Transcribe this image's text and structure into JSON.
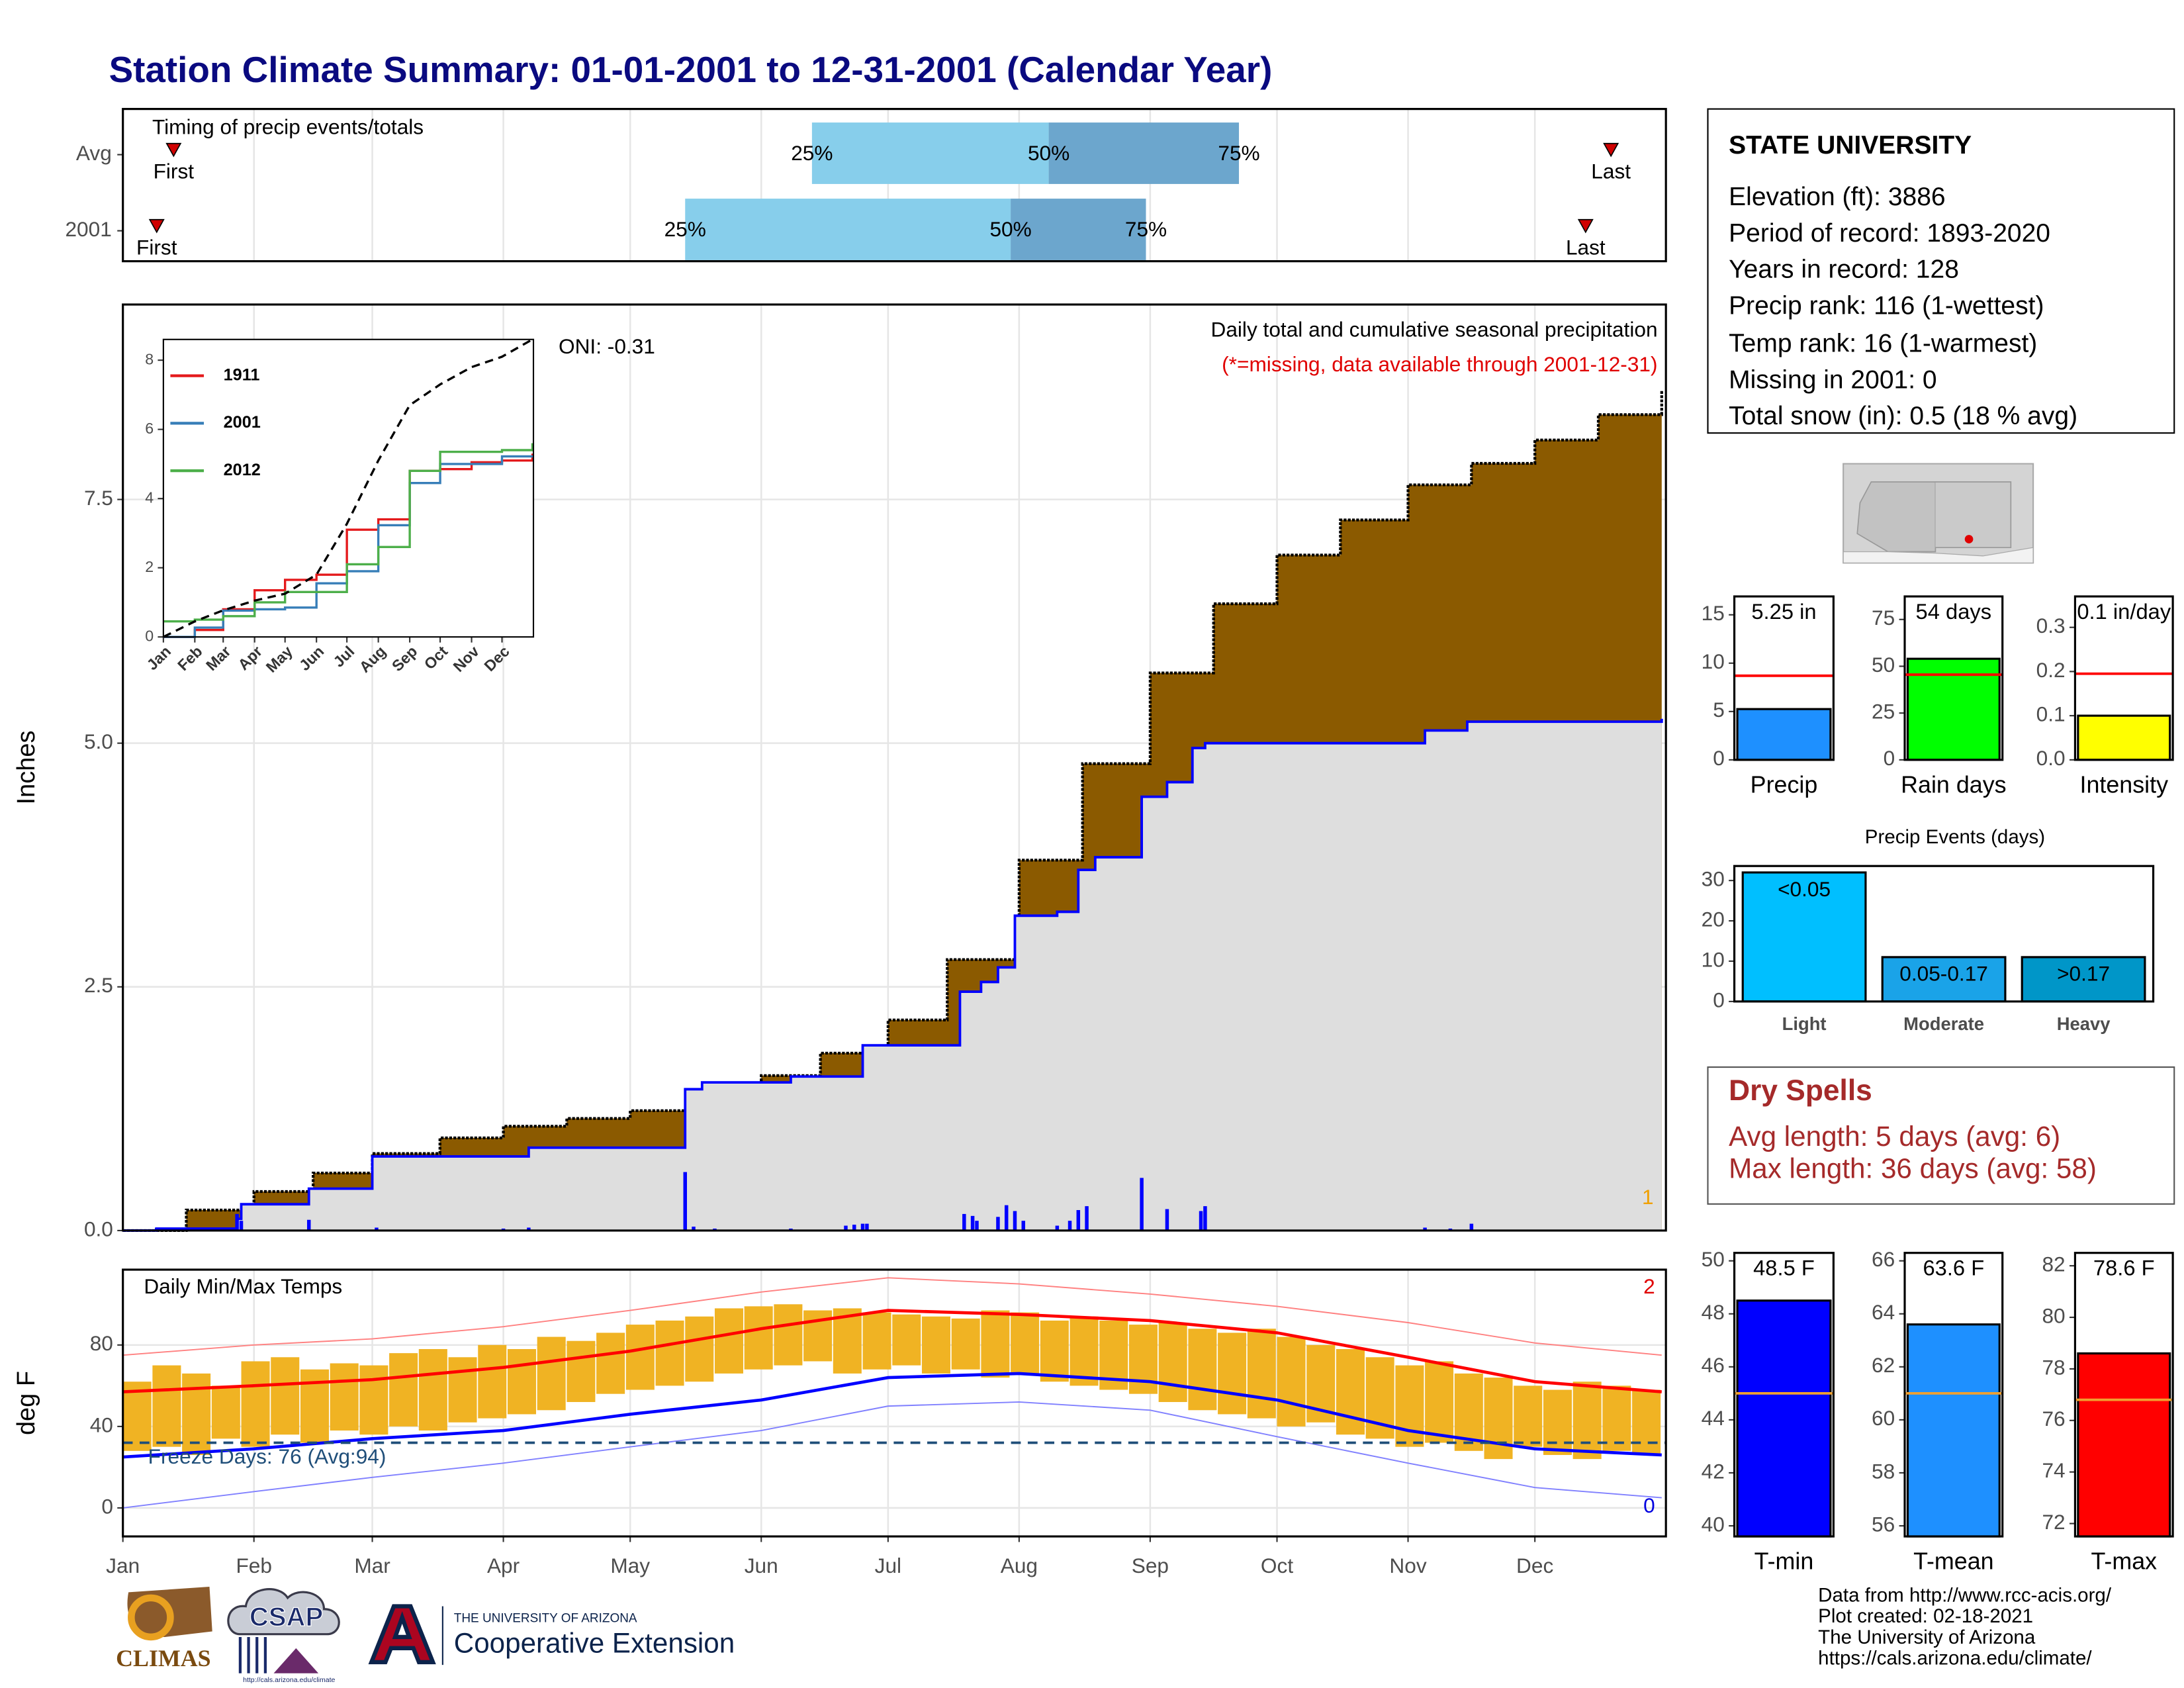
{
  "title": "Station Climate Summary: 01-01-2001 to 12-31-2001 (Calendar Year)",
  "station": {
    "name": "STATE UNIVERSITY",
    "lines": [
      "Elevation (ft): 3886",
      "Period of record: 1893-2020",
      "Years in record: 128",
      "Precip rank: 116 (1-wettest)",
      "Temp rank: 16 (1-warmest)",
      "Missing in 2001: 0",
      "Total snow (in): 0.5 (18 % avg)"
    ]
  },
  "dry_spells": {
    "title": "Dry Spells",
    "lines": [
      "Avg length: 5 days (avg: 6)",
      "Max length: 36 days (avg: 58)"
    ]
  },
  "footer": {
    "lines": [
      "Data from http://www.rcc-acis.org/",
      "Plot created: 02-18-2021",
      "The University of Arizona",
      "https://cals.arizona.edu/climate/"
    ]
  },
  "logos": {
    "climas": "CLIMAS",
    "csap": "CSAP",
    "csap_url": "http://cals.arizona.edu/climate",
    "university": "THE UNIVERSITY OF ARIZONA",
    "extension": "Cooperative Extension"
  },
  "chart_data": [
    {
      "type": "timeline",
      "subtitle": "Timing of precip events/totals",
      "categories": [
        "Avg",
        "2001"
      ],
      "xlim": [
        0,
        365
      ],
      "first": [
        12,
        8
      ],
      "q25": [
        163,
        133
      ],
      "q50": [
        219,
        210
      ],
      "q75": [
        264,
        242
      ],
      "last": [
        352,
        346
      ],
      "point_labels": {
        "first": "First",
        "q25": "25%",
        "q50": "50%",
        "q75": "75%",
        "last": "Last"
      },
      "colors": {
        "q25": "#87CEEB",
        "q50": "#6CA6CD",
        "marker": "#D00000"
      }
    },
    {
      "type": "area",
      "title": "Daily total and cumulative seasonal precipitation",
      "subtitle": "(*=missing, data available through 2001-12-31)",
      "annotation": "ONI: -0.31",
      "corner_note": "1",
      "y_label": "Inches",
      "xlim": [
        0,
        365
      ],
      "ylim": [
        0,
        9.5
      ],
      "yticks": [
        {
          "value": 0,
          "label": "0.0"
        },
        2.5,
        {
          "value": 5,
          "label": "5.0"
        },
        7.5
      ],
      "grid": true,
      "average": {
        "color": "#8B5A00",
        "x": [
          0,
          15,
          31,
          45,
          59,
          75,
          90,
          105,
          120,
          135,
          151,
          165,
          181,
          195,
          212,
          227,
          243,
          258,
          273,
          288,
          304,
          319,
          334,
          349,
          364
        ],
        "values": [
          0,
          0.21,
          0.4,
          0.59,
          0.79,
          0.95,
          1.07,
          1.15,
          1.23,
          1.38,
          1.59,
          1.82,
          2.16,
          2.78,
          3.8,
          4.79,
          5.72,
          6.43,
          6.93,
          7.29,
          7.65,
          7.87,
          8.11,
          8.37,
          8.62
        ]
      },
      "cumulative": {
        "color": "#0000FF",
        "fill": "#DEDEDE",
        "x": [
          0,
          8,
          27,
          28,
          44,
          59,
          96,
          133,
          137,
          158,
          175,
          198,
          203,
          207,
          211,
          221,
          226,
          230,
          241,
          247,
          253,
          256,
          308,
          318,
          364
        ],
        "values": [
          0,
          0.02,
          0.12,
          0.27,
          0.43,
          0.76,
          0.85,
          1.45,
          1.52,
          1.58,
          1.9,
          2.45,
          2.55,
          2.7,
          3.23,
          3.27,
          3.7,
          3.83,
          4.45,
          4.6,
          4.95,
          5.0,
          5.13,
          5.22,
          5.25
        ]
      },
      "daily": {
        "color": "#0000FF",
        "x": [
          8,
          27,
          28,
          44,
          60,
          90,
          96,
          133,
          135,
          140,
          158,
          171,
          173,
          175,
          176,
          199,
          201,
          202,
          207,
          209,
          211,
          213,
          221,
          224,
          226,
          228,
          241,
          247,
          255,
          256,
          308,
          314,
          319
        ],
        "values": [
          0.03,
          0.17,
          0.1,
          0.11,
          0.03,
          0.02,
          0.03,
          0.6,
          0.04,
          0.02,
          0.02,
          0.05,
          0.06,
          0.07,
          0.07,
          0.17,
          0.15,
          0.1,
          0.14,
          0.26,
          0.2,
          0.1,
          0.05,
          0.1,
          0.21,
          0.25,
          0.54,
          0.22,
          0.2,
          0.25,
          0.03,
          0.02,
          0.07
        ]
      }
    },
    {
      "type": "line",
      "xlim": [
        0,
        365
      ],
      "ylim": [
        0,
        8.6
      ],
      "yticks": [
        0,
        2,
        4,
        6,
        8
      ],
      "xticks": [
        {
          "value": 0,
          "label": "Jan"
        },
        {
          "value": 31,
          "label": "Feb"
        },
        {
          "value": 59,
          "label": "Mar"
        },
        {
          "value": 90,
          "label": "Apr"
        },
        {
          "value": 120,
          "label": "May"
        },
        {
          "value": 151,
          "label": "Jun"
        },
        {
          "value": 181,
          "label": "Jul"
        },
        {
          "value": 212,
          "label": "Aug"
        },
        {
          "value": 243,
          "label": "Sep"
        },
        {
          "value": 273,
          "label": "Oct"
        },
        {
          "value": 304,
          "label": "Nov"
        },
        {
          "value": 334,
          "label": "Dec"
        }
      ],
      "x": [
        0,
        31,
        59,
        90,
        120,
        151,
        181,
        212,
        243,
        273,
        304,
        334,
        364
      ],
      "average": {
        "color": "#000000",
        "values": [
          0,
          0.45,
          0.77,
          1.05,
          1.25,
          1.8,
          3.27,
          5.1,
          6.7,
          7.3,
          7.8,
          8.1,
          8.6
        ]
      },
      "series": [
        {
          "name": "1911",
          "color": "#E41A1C",
          "values": [
            0,
            0.2,
            0.8,
            1.35,
            1.65,
            1.8,
            3.1,
            3.4,
            4.8,
            4.85,
            5.05,
            5.1,
            5.3
          ]
        },
        {
          "name": "2001",
          "color": "#377EB8",
          "values": [
            0,
            0.27,
            0.76,
            0.8,
            0.85,
            1.55,
            1.9,
            3.23,
            4.45,
            5.0,
            5.0,
            5.22,
            5.25
          ]
        },
        {
          "name": "2012",
          "color": "#4DAF4A",
          "values": [
            0.45,
            0.5,
            0.6,
            1.0,
            1.3,
            1.3,
            2.1,
            2.6,
            4.8,
            5.35,
            5.35,
            5.4,
            5.6
          ]
        }
      ]
    },
    {
      "type": "range",
      "title": "Daily Min/Max Temps",
      "annotation": "Freeze Days: 76 (Avg:94)",
      "corner_note_high": "2",
      "corner_note_low": "0",
      "y_label": "deg F",
      "xlim": [
        0,
        365
      ],
      "ylim": [
        -14,
        117
      ],
      "yticks": [
        0,
        40,
        80
      ],
      "grid": true,
      "freeze_line": 32,
      "xticks": [
        {
          "value": 0,
          "label": "Jan"
        },
        {
          "value": 31,
          "label": "Feb"
        },
        {
          "value": 59,
          "label": "Mar"
        },
        {
          "value": 90,
          "label": "Apr"
        },
        {
          "value": 120,
          "label": "May"
        },
        {
          "value": 151,
          "label": "Jun"
        },
        {
          "value": 181,
          "label": "Jul"
        },
        {
          "value": 212,
          "label": "Aug"
        },
        {
          "value": 243,
          "label": "Sep"
        },
        {
          "value": 273,
          "label": "Oct"
        },
        {
          "value": 304,
          "label": "Nov"
        },
        {
          "value": 334,
          "label": "Dec"
        }
      ],
      "daily_range": {
        "color": "#F0B323",
        "x": [
          0,
          7,
          14,
          21,
          28,
          35,
          42,
          49,
          56,
          63,
          70,
          77,
          84,
          91,
          98,
          105,
          112,
          119,
          126,
          133,
          140,
          147,
          154,
          161,
          168,
          175,
          182,
          189,
          196,
          203,
          210,
          217,
          224,
          231,
          238,
          245,
          252,
          259,
          266,
          273,
          280,
          287,
          294,
          301,
          308,
          315,
          322,
          329,
          336,
          343,
          350,
          357
        ],
        "low": [
          28,
          30,
          26,
          34,
          30,
          36,
          32,
          38,
          36,
          40,
          38,
          42,
          44,
          46,
          48,
          52,
          56,
          58,
          60,
          62,
          66,
          68,
          70,
          72,
          66,
          68,
          70,
          66,
          68,
          64,
          66,
          62,
          60,
          58,
          56,
          52,
          48,
          46,
          44,
          40,
          42,
          36,
          34,
          30,
          32,
          28,
          24,
          30,
          26,
          24,
          28,
          26
        ],
        "high": [
          62,
          70,
          66,
          60,
          72,
          74,
          68,
          71,
          70,
          76,
          78,
          74,
          80,
          78,
          84,
          82,
          86,
          90,
          92,
          94,
          98,
          99,
          100,
          97,
          98,
          96,
          95,
          94,
          93,
          97,
          96,
          92,
          94,
          92,
          90,
          91,
          88,
          86,
          88,
          84,
          80,
          78,
          74,
          70,
          72,
          66,
          64,
          60,
          58,
          62,
          60,
          58
        ]
      },
      "x": [
        0,
        31,
        59,
        90,
        120,
        151,
        181,
        212,
        243,
        273,
        304,
        334,
        364
      ],
      "record_max": {
        "color": "#FF8080",
        "values": [
          75,
          80,
          83,
          89,
          97,
          106,
          113,
          110,
          105,
          99,
          91,
          81,
          75
        ]
      },
      "record_min": {
        "color": "#8080FF",
        "values": [
          0,
          8,
          15,
          22,
          30,
          38,
          50,
          52,
          48,
          35,
          22,
          10,
          5
        ]
      },
      "average_max": {
        "color": "#FF0000",
        "values": [
          57,
          60,
          63,
          69,
          77,
          88,
          97,
          95,
          92,
          86,
          74,
          62,
          57
        ]
      },
      "average_min": {
        "color": "#0000FF",
        "values": [
          25,
          29,
          34,
          38,
          46,
          53,
          64,
          66,
          62,
          53,
          38,
          29,
          26
        ]
      }
    },
    {
      "type": "bar",
      "categories": [
        "Precip"
      ],
      "values": [
        5.25
      ],
      "value_labels": [
        "5.25 in"
      ],
      "average": 8.7,
      "ylim": [
        0,
        16.9
      ],
      "yticks": [
        0,
        5,
        10,
        15
      ],
      "color": "#1E90FF",
      "average_color": "#FF0000"
    },
    {
      "type": "bar",
      "categories": [
        "Rain days"
      ],
      "values": [
        54
      ],
      "value_labels": [
        "54 days"
      ],
      "average": 45.5,
      "ylim": [
        0,
        87.3
      ],
      "yticks": [
        0,
        25,
        50,
        75
      ],
      "color": "#00FF00",
      "average_color": "#FF0000"
    },
    {
      "type": "bar",
      "categories": [
        "Intensity"
      ],
      "values": [
        0.1
      ],
      "value_labels": [
        "0.1 in/day"
      ],
      "average": 0.195,
      "ylim": [
        0,
        0.37
      ],
      "yticks": [
        {
          "value": 0,
          "label": "0.0"
        },
        0.1,
        0.2,
        0.3
      ],
      "color": "#FFFF00",
      "average_color": "#FF0000"
    },
    {
      "type": "bar",
      "title": "Precip Events (days)",
      "categories": [
        "Light",
        "Moderate",
        "Heavy"
      ],
      "values": [
        32,
        11,
        11
      ],
      "bar_labels": [
        "<0.05",
        "0.05-0.17",
        ">0.17"
      ],
      "ylim": [
        0,
        33.6
      ],
      "yticks": [
        0,
        10,
        20,
        30
      ],
      "colors": [
        "#00BFFF",
        "#1AA3E8",
        "#0096C8"
      ]
    },
    {
      "type": "bar",
      "categories": [
        "T-min"
      ],
      "values": [
        48.5
      ],
      "value_labels": [
        "48.5 F"
      ],
      "average": 45.0,
      "ylim": [
        39.6,
        50.3
      ],
      "yticks": [
        40,
        42,
        44,
        46,
        48,
        50
      ],
      "color": "#0000FF",
      "average_color": "#F0A030"
    },
    {
      "type": "bar",
      "categories": [
        "T-mean"
      ],
      "values": [
        63.6
      ],
      "value_labels": [
        "63.6 F"
      ],
      "average": 61.0,
      "ylim": [
        55.6,
        66.3
      ],
      "yticks": [
        56,
        58,
        60,
        62,
        64,
        66
      ],
      "color": "#1E90FF",
      "average_color": "#F0A030"
    },
    {
      "type": "bar",
      "categories": [
        "T-max"
      ],
      "values": [
        78.6
      ],
      "value_labels": [
        "78.6 F"
      ],
      "average": 76.8,
      "ylim": [
        71.5,
        82.5
      ],
      "yticks": [
        72,
        74,
        76,
        78,
        80,
        82
      ],
      "color": "#FF0000",
      "average_color": "#F0A030"
    }
  ]
}
